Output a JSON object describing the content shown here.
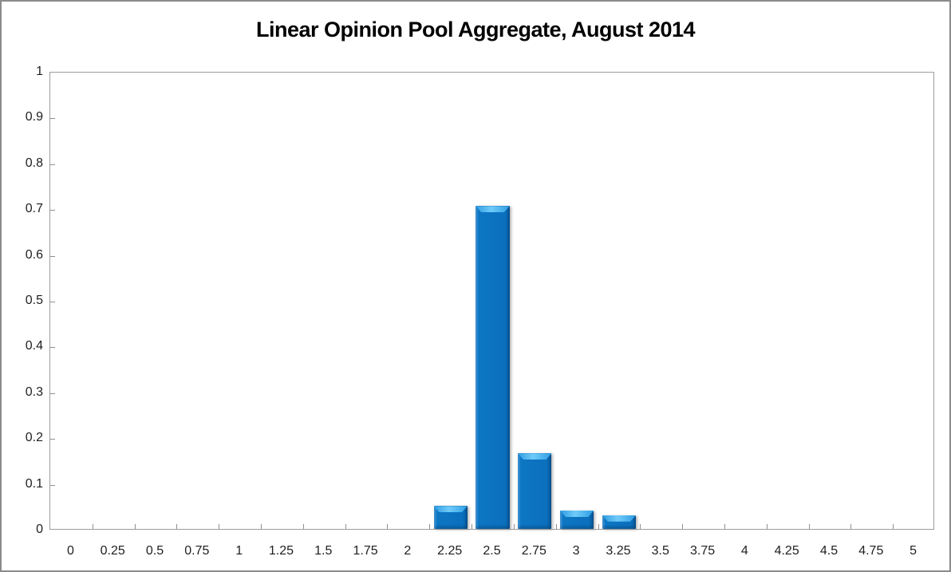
{
  "chart_data": {
    "type": "bar",
    "title": "Linear Opinion Pool Aggregate, August 2014",
    "categories": [
      "0",
      "0.25",
      "0.5",
      "0.75",
      "1",
      "1.25",
      "1.5",
      "1.75",
      "2",
      "2.25",
      "2.5",
      "2.75",
      "3",
      "3.25",
      "3.5",
      "3.75",
      "4",
      "4.25",
      "4.5",
      "4.75",
      "5"
    ],
    "values": [
      0,
      0,
      0,
      0,
      0,
      0,
      0,
      0,
      0,
      0.05,
      0.705,
      0.165,
      0.04,
      0.03,
      0,
      0,
      0,
      0,
      0,
      0,
      0
    ],
    "xlabel": "",
    "ylabel": "",
    "ylim": [
      0,
      1
    ],
    "y_tick_labels": [
      "0",
      "0.1",
      "0.2",
      "0.3",
      "0.4",
      "0.5",
      "0.6",
      "0.7",
      "0.8",
      "0.9",
      "1"
    ],
    "grid": false,
    "legend": "none",
    "colors": {
      "bar_fill": "#0B70BD",
      "bar_bevel_highlight": "#64C4F6",
      "axis_line": "#9D9D9D",
      "tick_mark": "#8F8F8F",
      "tick_label": "#1F1F1F",
      "title_text": "#000000",
      "plot_background": "#FFFFFF",
      "outer_frame": "#8B8B8B"
    }
  }
}
